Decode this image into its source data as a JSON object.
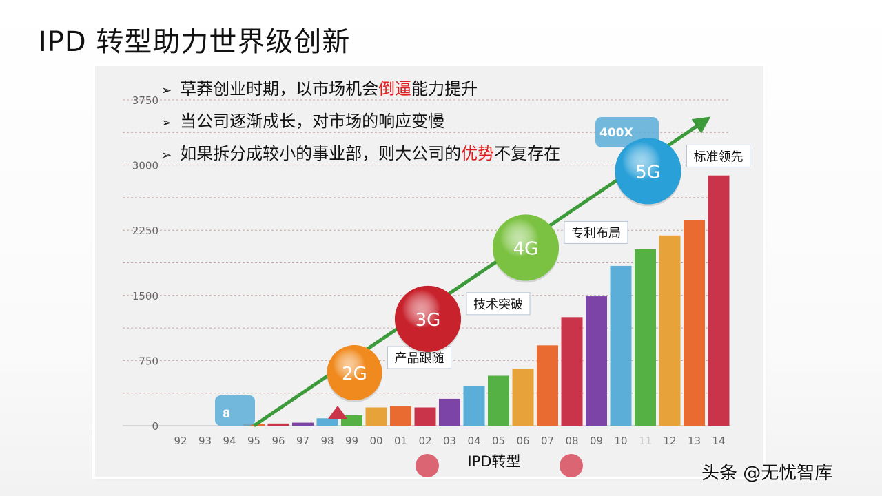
{
  "slide": {
    "title": "IPD 转型助力世界级创新"
  },
  "bullets": [
    {
      "before": "草莽创业时期，以市场机会",
      "highlight": "倒逼",
      "after": "能力提升"
    },
    {
      "before": "当公司逐渐成长，对市场的响应变慢",
      "highlight": "",
      "after": ""
    },
    {
      "before": "如果拆分成较小的事业部，则大公司的",
      "highlight": "优势",
      "after": "不复存在"
    }
  ],
  "chart_data": {
    "type": "bar",
    "categories": [
      "92",
      "93",
      "94",
      "95",
      "96",
      "97",
      "98",
      "99",
      "00",
      "01",
      "02",
      "03",
      "04",
      "05",
      "06",
      "07",
      "08",
      "09",
      "10",
      "11",
      "12",
      "13",
      "14"
    ],
    "values": [
      0,
      0,
      0,
      20,
      25,
      35,
      85,
      120,
      210,
      225,
      210,
      310,
      460,
      575,
      655,
      925,
      1250,
      1490,
      1840,
      2030,
      2190,
      2370,
      2880
    ],
    "bar_colors": [
      "#7ec64b",
      "#e8a23a",
      "#e8a23a",
      "#e96b32",
      "#c9344b",
      "#7c44a7",
      "#5aaed8",
      "#56b145",
      "#e8a23a",
      "#e96b32",
      "#c9344b",
      "#7c44a7",
      "#5aaed8",
      "#56b145",
      "#e8a23a",
      "#e96b32",
      "#c9344b",
      "#7c44a7",
      "#5aaed8",
      "#56b145",
      "#e8a23a",
      "#e96b32",
      "#c9344b"
    ],
    "yticks": [
      "0",
      "750",
      "1500",
      "2250",
      "3000",
      "3750"
    ],
    "ylim": [
      0,
      3750
    ],
    "xlabel": "IPD转型",
    "start_badge": "8",
    "end_badge": "400X",
    "milestones": [
      {
        "label": "2G",
        "note": "产品跟随",
        "color": "#f08a1e",
        "year": "99",
        "value": 610
      },
      {
        "label": "3G",
        "note": "技术突破",
        "color": "#c8222c",
        "year": "02",
        "value": 1230
      },
      {
        "label": "4G",
        "note": "专利布局",
        "color": "#7cc242",
        "year": "06",
        "value": 2050
      },
      {
        "label": "5G",
        "note": "标准领先",
        "color": "#2aa0d8",
        "year": "11",
        "value": 2930
      }
    ],
    "trend": {
      "from_year": "95",
      "from_value": 0,
      "to_year": "14",
      "to_value": 3500
    }
  },
  "watermark": "头条 @无忧智库"
}
